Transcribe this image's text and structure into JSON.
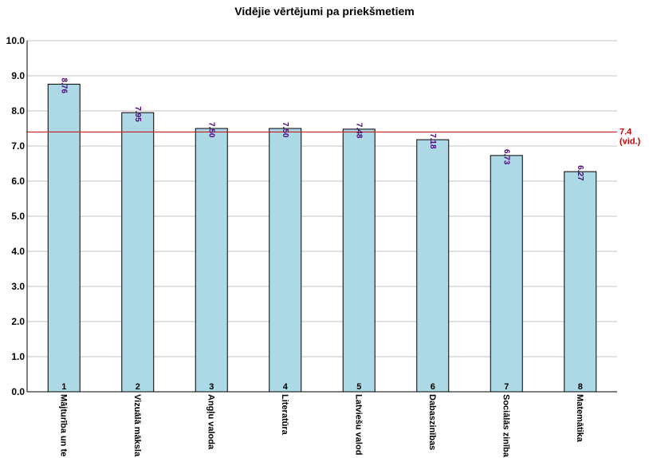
{
  "chart_data": {
    "type": "bar",
    "title": "Vidējie vērtējumi pa priekšmetiem",
    "xlabel": "",
    "ylabel": "",
    "ylim": [
      0,
      10
    ],
    "yticks": [
      "0.0",
      "1.0",
      "2.0",
      "3.0",
      "4.0",
      "5.0",
      "6.0",
      "7.0",
      "8.0",
      "9.0",
      "10.0"
    ],
    "grid": true,
    "legend": "none",
    "categories": [
      "Mājturība un te",
      "Vizuālā māksla",
      "Angļu valoda",
      "Literatūra",
      "Latviešu valod",
      "Dabaszinības",
      "Sociālās zinība",
      "Matemātika"
    ],
    "indices": [
      "1",
      "2",
      "3",
      "4",
      "5",
      "6",
      "7",
      "8"
    ],
    "values": [
      8.76,
      7.95,
      7.5,
      7.5,
      7.48,
      7.18,
      6.73,
      6.27
    ],
    "value_labels": [
      "8.76",
      "7.95",
      "7.50",
      "7.50",
      "7.48",
      "7.18",
      "6.73",
      "6.27"
    ],
    "average": {
      "value": 7.4,
      "label": "7.4",
      "sublabel": "(vid.)",
      "color": "#cc0000"
    },
    "colors": {
      "bar_fill": "#add8e6",
      "bar_stroke": "#000000",
      "grid": "#c0c0c0",
      "value_label": "#4b0082"
    }
  }
}
